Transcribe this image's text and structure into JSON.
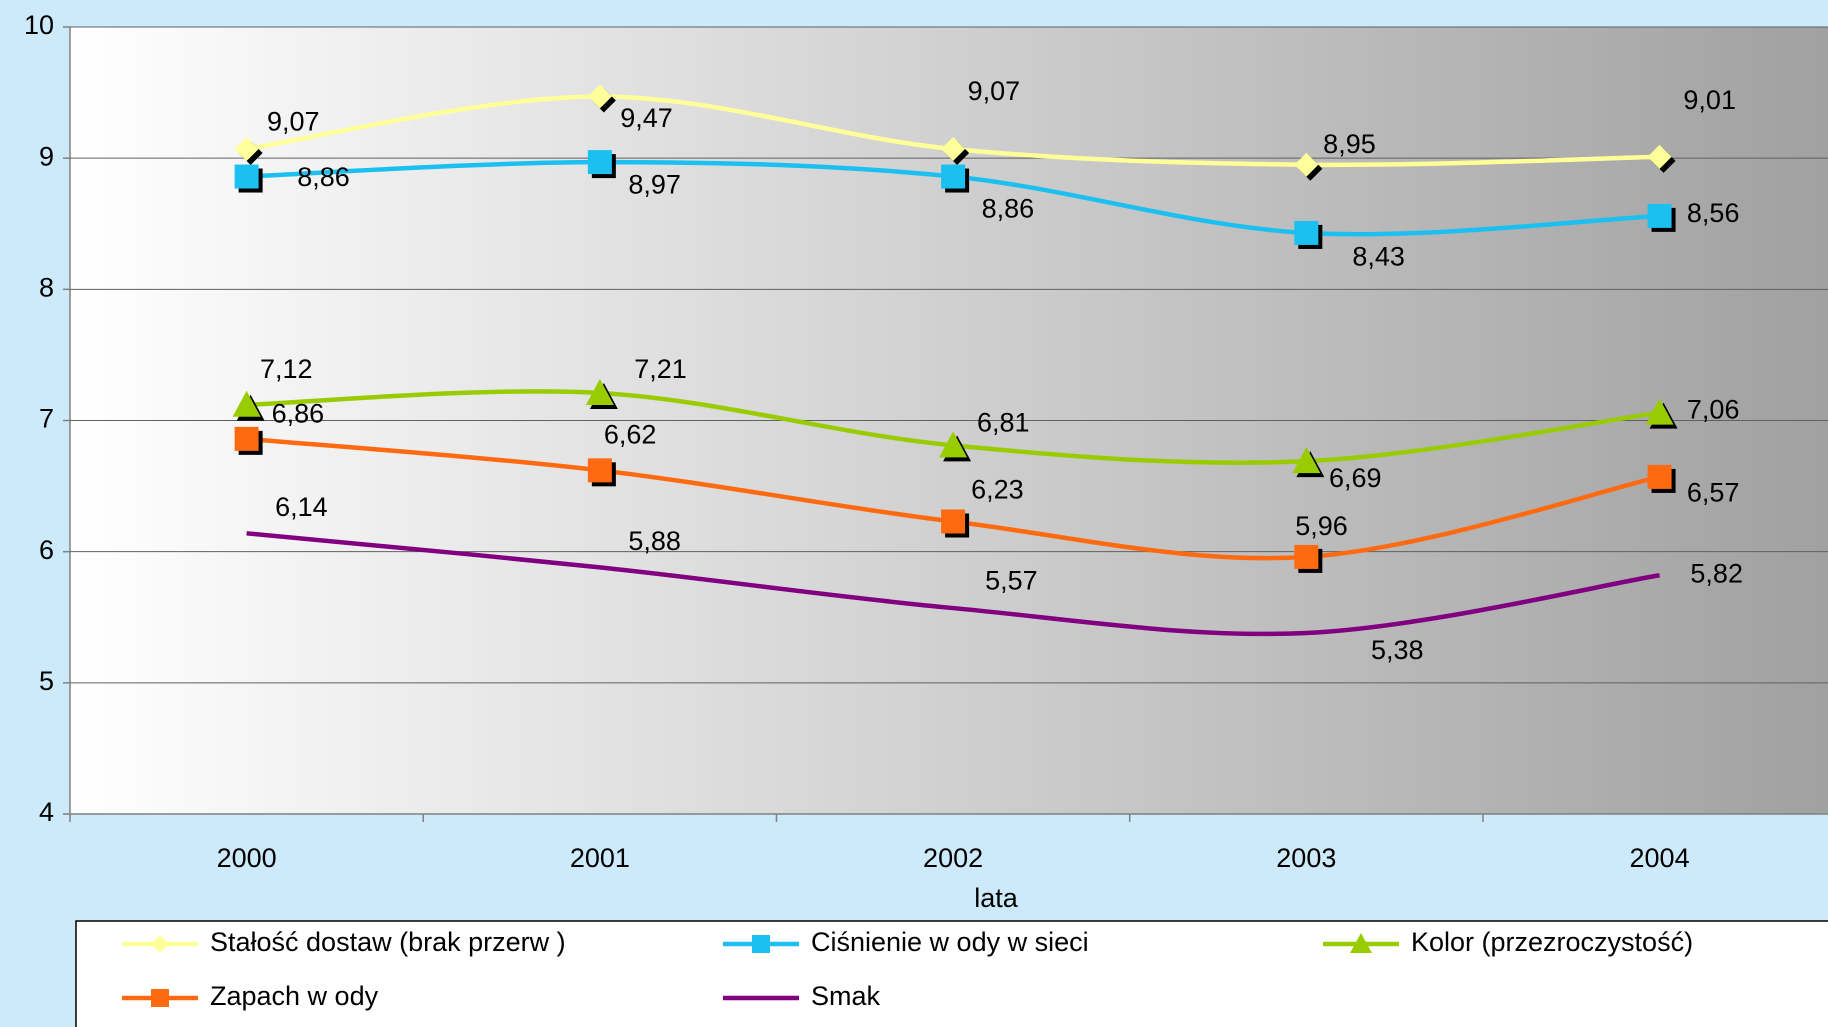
{
  "chart_data": {
    "type": "line",
    "x_label": "lata",
    "categories": [
      "2000",
      "2001",
      "2002",
      "2003",
      "2004"
    ],
    "ylim": [
      4,
      10
    ],
    "yticks": [
      4,
      5,
      6,
      7,
      8,
      9,
      10
    ],
    "grid": true,
    "legend": "bottom",
    "series": [
      {
        "name": "Stałość dostaw  (brak przerw )",
        "color": "#ffff99",
        "marker": "diamond",
        "values": [
          9.07,
          9.47,
          9.07,
          8.95,
          9.01
        ],
        "value_labels": [
          "9,07",
          "9,47",
          "9,07",
          "8,95",
          "9,01"
        ]
      },
      {
        "name": "Ciśnienie w ody w  sieci",
        "color": "#1cc0f0",
        "marker": "square",
        "values": [
          8.86,
          8.97,
          8.86,
          8.43,
          8.56
        ],
        "value_labels": [
          "8,86",
          "8,97",
          "8,86",
          "8,43",
          "8,56"
        ]
      },
      {
        "name": "Kolor (przezroczystość)",
        "color": "#99cc00",
        "marker": "triangle",
        "values": [
          7.12,
          7.21,
          6.81,
          6.69,
          7.06
        ],
        "value_labels": [
          "7,12",
          "7,21",
          "6,81",
          "6,69",
          "7,06"
        ]
      },
      {
        "name": "Zapach w ody",
        "color": "#ff6a10",
        "marker": "square",
        "values": [
          6.86,
          6.62,
          6.23,
          5.96,
          6.57
        ],
        "value_labels": [
          "6,86",
          "6,62",
          "6,23",
          "5,96",
          "6,57"
        ]
      },
      {
        "name": "Smak",
        "color": "#800080",
        "values": [
          6.14,
          5.88,
          5.57,
          5.38,
          5.82
        ],
        "value_labels": [
          "6,14",
          "5,88",
          "5,57",
          "5,38",
          "5,82"
        ]
      }
    ]
  }
}
